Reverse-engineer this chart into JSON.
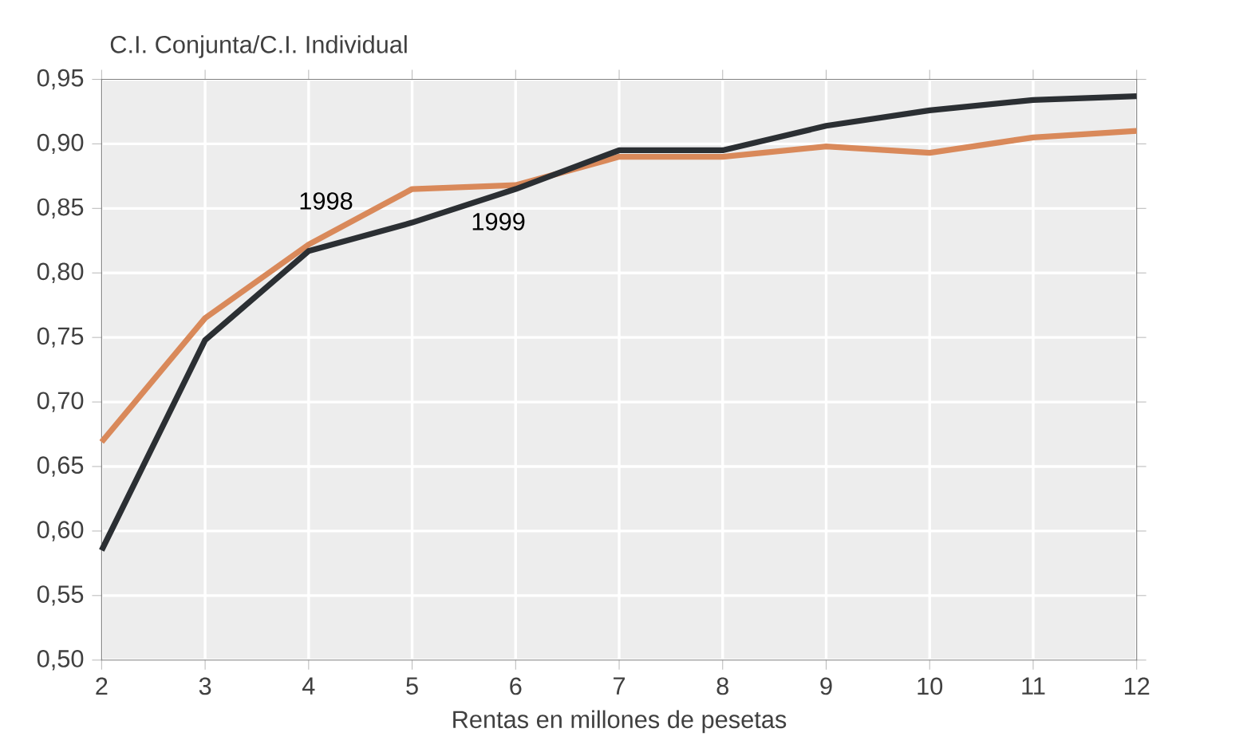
{
  "chart_data": {
    "type": "line",
    "ylabel": "C.I. Conjunta/C.I. Individual",
    "xlabel": "Rentas en millones de pesetas",
    "x": [
      2,
      3,
      4,
      5,
      6,
      7,
      8,
      9,
      10,
      11,
      12
    ],
    "series": [
      {
        "name": "1998",
        "color": "#d9895a",
        "values": [
          0.669,
          0.765,
          0.822,
          0.865,
          0.868,
          0.89,
          0.89,
          0.898,
          0.893,
          0.905,
          0.91
        ]
      },
      {
        "name": "1999",
        "color": "#2b2f33",
        "values": [
          0.585,
          0.748,
          0.817,
          0.839,
          0.865,
          0.895,
          0.895,
          0.914,
          0.926,
          0.934,
          0.937
        ]
      }
    ],
    "xlim": [
      2,
      12
    ],
    "ylim": [
      0.5,
      0.95
    ],
    "xticks": [
      2,
      3,
      4,
      5,
      6,
      7,
      8,
      9,
      10,
      11,
      12
    ],
    "yticks": [
      {
        "value": 0.5,
        "label": "0,50"
      },
      {
        "value": 0.55,
        "label": "0,55"
      },
      {
        "value": 0.6,
        "label": "0,60"
      },
      {
        "value": 0.65,
        "label": "0,65"
      },
      {
        "value": 0.7,
        "label": "0,70"
      },
      {
        "value": 0.75,
        "label": "0,75"
      },
      {
        "value": 0.8,
        "label": "0,80"
      },
      {
        "value": 0.85,
        "label": "0,85"
      },
      {
        "value": 0.9,
        "label": "0,90"
      },
      {
        "value": 0.95,
        "label": "0,95"
      }
    ],
    "grid": true,
    "legend": false,
    "marker": "none",
    "line_style": "solid"
  }
}
